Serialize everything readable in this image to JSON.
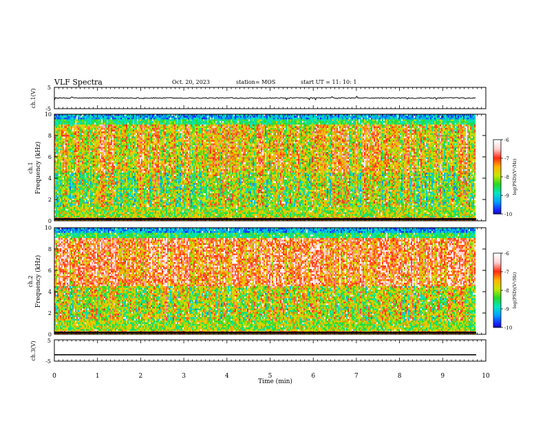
{
  "header": {
    "title": "VLF Spectra",
    "date": "Oct. 20, 2023",
    "station": "station= MOS",
    "start": "start  UT =   11: 10: 1"
  },
  "colors": {
    "frame": "#000000",
    "colormap": [
      "#000000",
      "#1a1aff",
      "#00a0ff",
      "#00e8c0",
      "#28d828",
      "#c8e600",
      "#ffb400",
      "#ff2a14",
      "#ffd0d0",
      "#ffffff"
    ],
    "trace": "#000000"
  },
  "chart_data": [
    {
      "type": "line",
      "id": "ch1-voltage",
      "ylabel": "ch.1(V)",
      "ylim": [
        -5,
        5
      ],
      "yticks": [
        "5",
        "-5"
      ],
      "series": [
        {
          "values": [
            0.0
          ]
        }
      ],
      "note_values": "noisy trace near 0 V over the full 0–9.8 min span"
    },
    {
      "type": "heatmap",
      "id": "ch1-spectrogram",
      "ylabel": "ch.1\nFrequency (kHz)",
      "ylim": [
        0,
        10
      ],
      "yticks": [
        "0",
        "2",
        "4",
        "6",
        "8",
        "10"
      ],
      "xlim": [
        0,
        10
      ],
      "data_extent_min": 9.8,
      "colorbar": {
        "label": "log(PSD)(V²/Hz)",
        "range": [
          -10,
          -6
        ],
        "ticks": [
          "-6",
          "-7",
          "-8",
          "-9",
          "-10"
        ]
      }
    },
    {
      "type": "heatmap",
      "id": "ch2-spectrogram",
      "ylabel": "ch.2\nFrequency (kHz)",
      "ylim": [
        0,
        10
      ],
      "yticks": [
        "0",
        "2",
        "4",
        "6",
        "8",
        "10"
      ],
      "xlim": [
        0,
        10
      ],
      "data_extent_min": 9.8,
      "colorbar": {
        "label": "log(PSD)(V²/Hz)",
        "range": [
          -10,
          -6
        ],
        "ticks": [
          "-6",
          "-7",
          "-8",
          "-9",
          "-10"
        ]
      }
    },
    {
      "type": "line",
      "id": "ch3-voltage",
      "ylabel": "ch.3(V)",
      "ylim": [
        -5,
        5
      ],
      "yticks": [
        "5",
        "-5"
      ],
      "series": [
        {
          "values": [
            -2.0
          ]
        }
      ],
      "xlim": [
        0,
        10
      ],
      "xticks": [
        "0",
        "1",
        "2",
        "3",
        "4",
        "5",
        "6",
        "7",
        "8",
        "9",
        "10"
      ],
      "xlabel": "Time (min)"
    }
  ]
}
